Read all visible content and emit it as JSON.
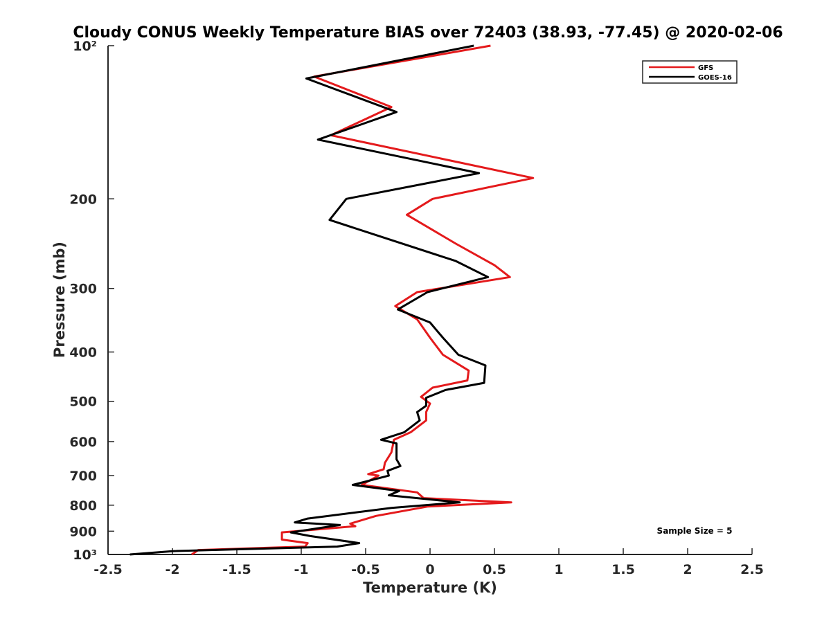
{
  "chart_data": {
    "type": "line",
    "title": "Cloudy CONUS Weekly Temperature BIAS over 72403 (38.93, -77.45) @ 2020-02-06",
    "xlabel": "Temperature (K)",
    "ylabel": "Pressure (mb)",
    "xlim": [
      -2.5,
      2.5
    ],
    "ylim": [
      100,
      1000
    ],
    "y_scale": "log",
    "y_reversed": true,
    "grid": false,
    "legend_position": "top-right",
    "x_ticks": [
      -2.5,
      -2,
      -1.5,
      -1,
      -0.5,
      0,
      0.5,
      1,
      1.5,
      2,
      2.5
    ],
    "x_tick_labels": [
      "-2.5",
      "-2",
      "-1.5",
      "-1",
      "-0.5",
      "0",
      "0.5",
      "1",
      "1.5",
      "2",
      "2.5"
    ],
    "y_ticks": [
      100,
      200,
      300,
      400,
      500,
      600,
      700,
      800,
      900,
      1000
    ],
    "y_tick_labels": [
      "10²",
      "200",
      "300",
      "400",
      "500",
      "600",
      "700",
      "800",
      "900",
      "10³"
    ],
    "annotation": "Sample Size = 5",
    "series": [
      {
        "name": "GFS",
        "color": "#e41a1c",
        "points": [
          [
            0.47,
            100
          ],
          [
            -0.9,
            115
          ],
          [
            -0.3,
            132
          ],
          [
            -0.77,
            150
          ],
          [
            0.8,
            182
          ],
          [
            0.02,
            200
          ],
          [
            -0.18,
            215
          ],
          [
            0.2,
            245
          ],
          [
            0.5,
            270
          ],
          [
            0.62,
            285
          ],
          [
            -0.1,
            305
          ],
          [
            -0.27,
            325
          ],
          [
            -0.1,
            345
          ],
          [
            0.0,
            375
          ],
          [
            0.1,
            405
          ],
          [
            0.3,
            435
          ],
          [
            0.29,
            455
          ],
          [
            0.02,
            470
          ],
          [
            -0.07,
            490
          ],
          [
            0.0,
            505
          ],
          [
            -0.03,
            525
          ],
          [
            -0.03,
            545
          ],
          [
            -0.15,
            575
          ],
          [
            -0.28,
            595
          ],
          [
            -0.3,
            630
          ],
          [
            -0.35,
            660
          ],
          [
            -0.36,
            680
          ],
          [
            -0.48,
            695
          ],
          [
            -0.4,
            700
          ],
          [
            -0.53,
            730
          ],
          [
            -0.1,
            755
          ],
          [
            -0.05,
            775
          ],
          [
            0.63,
            790
          ],
          [
            -0.02,
            805
          ],
          [
            -0.42,
            840
          ],
          [
            -0.62,
            870
          ],
          [
            -0.58,
            880
          ],
          [
            -1.15,
            905
          ],
          [
            -1.15,
            935
          ],
          [
            -0.95,
            950
          ],
          [
            -0.97,
            965
          ],
          [
            -1.8,
            980
          ],
          [
            -1.85,
            1000
          ]
        ]
      },
      {
        "name": "GOES-16",
        "color": "#000000",
        "points": [
          [
            0.34,
            100
          ],
          [
            -0.96,
            116
          ],
          [
            -0.26,
            135
          ],
          [
            -0.87,
            153
          ],
          [
            0.38,
            178
          ],
          [
            -0.65,
            200
          ],
          [
            -0.78,
            220
          ],
          [
            0.2,
            265
          ],
          [
            0.45,
            285
          ],
          [
            -0.02,
            305
          ],
          [
            -0.25,
            330
          ],
          [
            0.0,
            350
          ],
          [
            0.1,
            375
          ],
          [
            0.22,
            405
          ],
          [
            0.43,
            425
          ],
          [
            0.42,
            460
          ],
          [
            0.12,
            475
          ],
          [
            -0.03,
            492
          ],
          [
            -0.03,
            510
          ],
          [
            -0.1,
            525
          ],
          [
            -0.08,
            545
          ],
          [
            -0.2,
            575
          ],
          [
            -0.38,
            595
          ],
          [
            -0.26,
            605
          ],
          [
            -0.26,
            630
          ],
          [
            -0.26,
            650
          ],
          [
            -0.23,
            670
          ],
          [
            -0.33,
            685
          ],
          [
            -0.32,
            700
          ],
          [
            -0.6,
            730
          ],
          [
            -0.24,
            750
          ],
          [
            -0.32,
            765
          ],
          [
            0.23,
            790
          ],
          [
            -0.3,
            810
          ],
          [
            -0.95,
            850
          ],
          [
            -1.05,
            865
          ],
          [
            -0.7,
            875
          ],
          [
            -1.08,
            905
          ],
          [
            -0.93,
            920
          ],
          [
            -0.55,
            950
          ],
          [
            -0.72,
            965
          ],
          [
            -2.0,
            985
          ],
          [
            -2.33,
            1000
          ]
        ]
      }
    ]
  }
}
